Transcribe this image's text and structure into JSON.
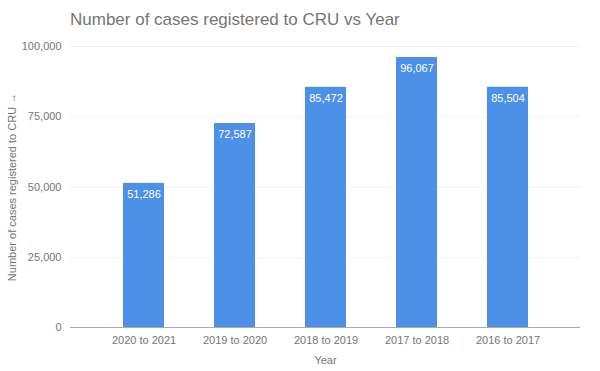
{
  "chart_data": {
    "type": "bar",
    "title": "Number of cases registered to CRU vs Year",
    "xlabel": "Year",
    "ylabel": "Number of cases registered to CRU",
    "categories": [
      "2020 to 2021",
      "2019 to 2020",
      "2018 to 2019",
      "2017 to 2018",
      "2016 to 2017"
    ],
    "values": [
      51286,
      72587,
      85472,
      96067,
      85504
    ],
    "value_labels": [
      "51,286",
      "72,587",
      "85,472",
      "96,067",
      "85,504"
    ],
    "color": "#4d90e8",
    "ylim": [
      0,
      100000
    ],
    "yticks": [
      0,
      {
        "value": 25000,
        "label": "25,000"
      },
      {
        "value": 50000,
        "label": "50,000"
      },
      {
        "value": 75000,
        "label": "75,000"
      },
      {
        "value": 100000,
        "label": "100,000"
      }
    ],
    "grid": true,
    "data_labels": true
  }
}
